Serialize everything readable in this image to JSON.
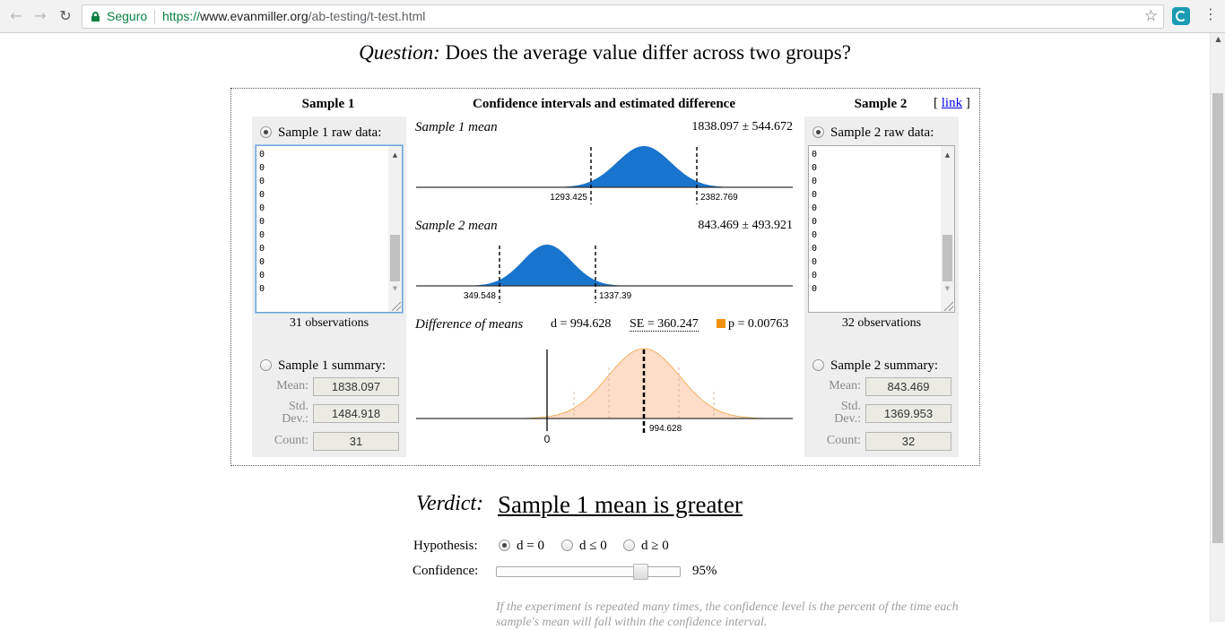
{
  "browser": {
    "secure_label": "Seguro",
    "url_proto": "https://",
    "url_domain": "www.evanmiller.org",
    "url_path": "/ab-testing/t-test.html"
  },
  "question": {
    "prefix": "Question:",
    "text": " Does the average value differ across two groups?"
  },
  "headers": {
    "sample1": "Sample 1",
    "middle": "Confidence intervals and estimated difference",
    "sample2": "Sample 2",
    "link_open": "[",
    "link": "link",
    "link_close": "]"
  },
  "sample1": {
    "raw_label": "Sample 1 raw data:",
    "raw_lines": [
      "0",
      "0",
      "0",
      "0",
      "0",
      "0",
      "0",
      "0",
      "0",
      "0",
      "0"
    ],
    "observations": "31 observations",
    "summary_label": "Sample 1 summary:",
    "mean_label": "Mean:",
    "std_label_1": "Std.",
    "std_label_2": "Dev.:",
    "count_label": "Count:",
    "mean": "1838.097",
    "std": "1484.918",
    "count": "31"
  },
  "sample2": {
    "raw_label": "Sample 2 raw data:",
    "raw_lines": [
      "0",
      "0",
      "0",
      "0",
      "0",
      "0",
      "0",
      "0",
      "0",
      "0",
      "0"
    ],
    "observations": "32 observations",
    "summary_label": "Sample 2 summary:",
    "mean_label": "Mean:",
    "std_label_1": "Std.",
    "std_label_2": "Dev.:",
    "count_label": "Count:",
    "mean": "843.469",
    "std": "1369.953",
    "count": "32"
  },
  "plots": {
    "s1_label": "Sample 1 mean",
    "s1_value": "1838.097 ± 544.672",
    "s1_low": "1293.425",
    "s1_high": "2382.769",
    "s2_label": "Sample 2 mean",
    "s2_value": "843.469 ± 493.921",
    "s2_low": "349.548",
    "s2_high": "1337.39",
    "diff_label": "Difference of means",
    "diff_d": "d = 994.628",
    "diff_se": "SE = 360.247",
    "diff_p": "p = 0.00763",
    "diff_zero": "0",
    "diff_center": "994.628",
    "colors": {
      "blue": "#1874cd",
      "peach": "#fddcc8",
      "orange": "#f0900e"
    }
  },
  "verdict": {
    "label": "Verdict:",
    "value": "Sample 1 mean is greater",
    "hypothesis_label": "Hypothesis:",
    "options": [
      "d = 0",
      "d ≤ 0",
      "d ≥ 0"
    ],
    "confidence_label": "Confidence:",
    "confidence_value": "95%",
    "confidence_level": 0.95,
    "note": "If the experiment is repeated many times, the confidence level is the percent of the time each sample's mean will fall within the confidence interval."
  }
}
